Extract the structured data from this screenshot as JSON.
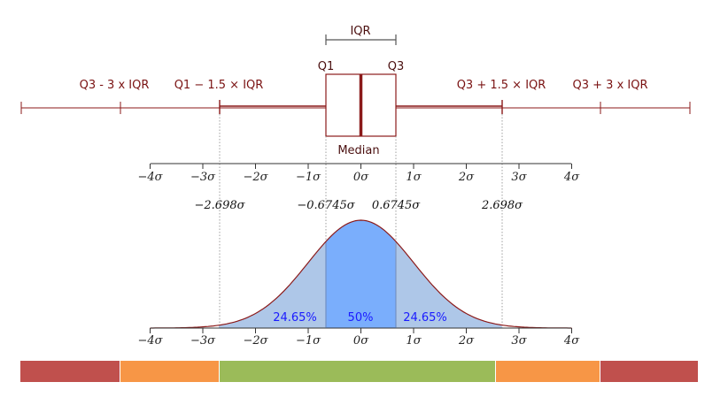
{
  "labels": {
    "iqr": "IQR",
    "q1": "Q1",
    "q3": "Q3",
    "median": "Median",
    "q3_minus_3iqr": "Q3 - 3 x IQR",
    "q1_minus_15iqr": "Q1 − 1.5 × IQR",
    "q3_plus_15iqr": "Q3 + 1.5 × IQR",
    "q3_plus_3iqr": "Q3 + 3 x IQR"
  },
  "sigma_ticks": [
    "−4σ",
    "−3σ",
    "−2σ",
    "−1σ",
    "0σ",
    "1σ",
    "2σ",
    "3σ",
    "4σ"
  ],
  "sigma_markers": {
    "neg_2698": "−2.698σ",
    "neg_06745": "−0.6745σ",
    "pos_06745": "0.6745σ",
    "pos_2698": "2.698σ"
  },
  "percentages": {
    "left": "24.65%",
    "center": "50%",
    "right": "24.65%"
  },
  "colors": {
    "box_line": "#8b1a1a",
    "curve_fill_outer": "#aec7e8",
    "curve_fill_center": "#7aaefc",
    "band_red": "#c0504d",
    "band_orange": "#f79646",
    "band_green": "#9bbb59"
  }
}
